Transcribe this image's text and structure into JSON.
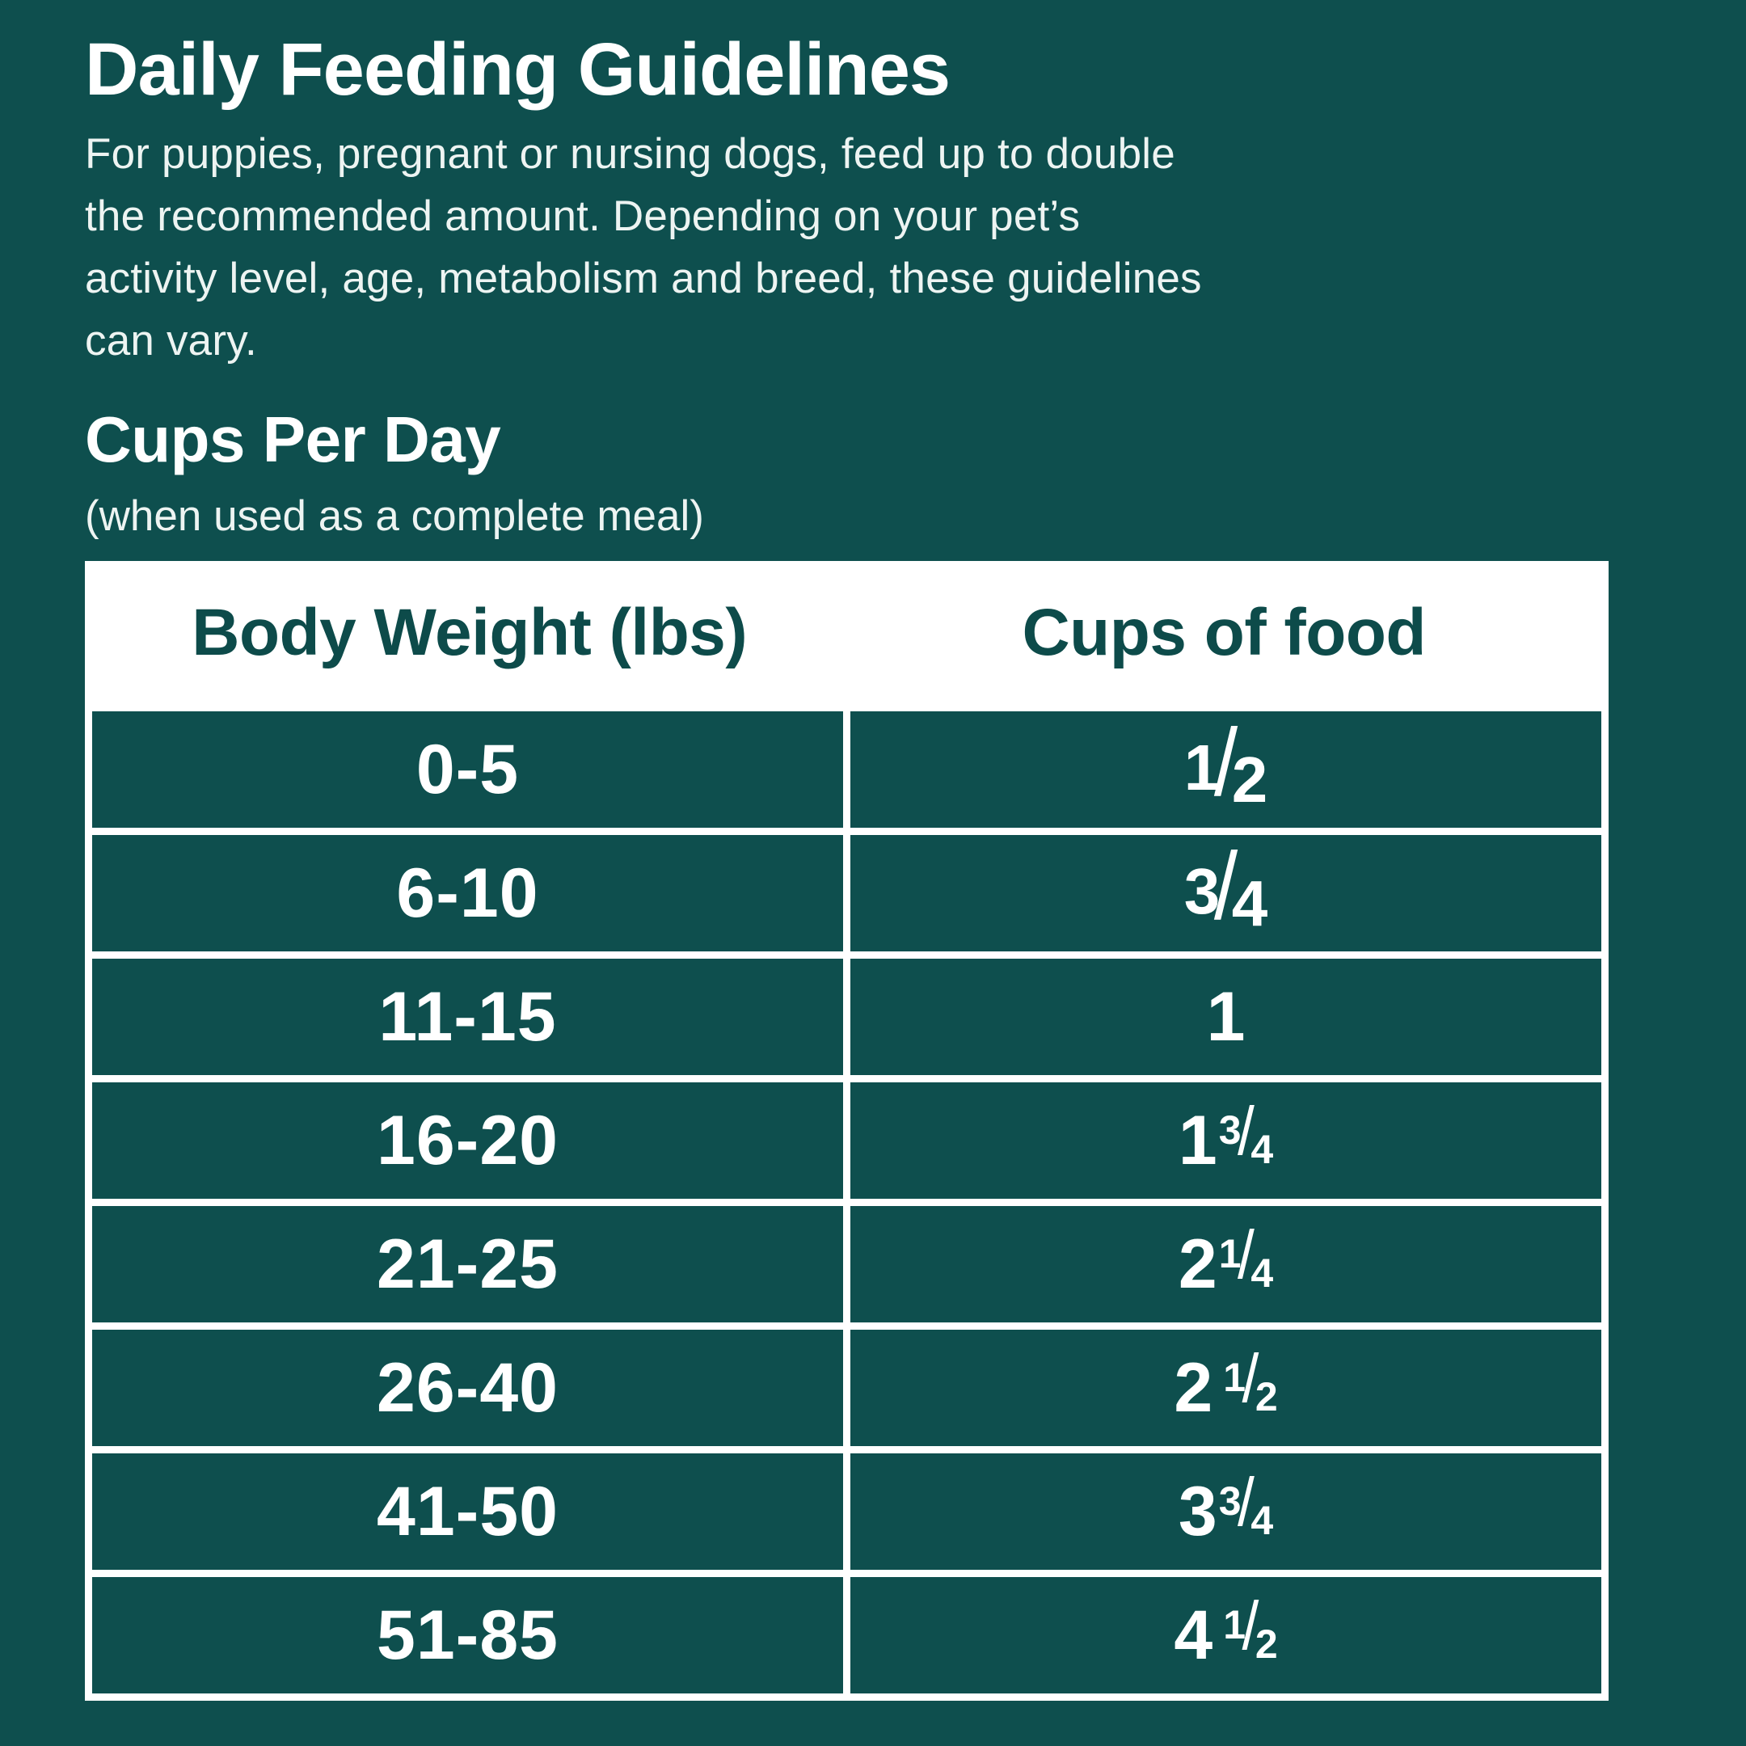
{
  "colors": {
    "background": "#0e4f4e",
    "surface_white": "#ffffff",
    "intro_text": "#edf4f2",
    "table_header_text": "#0d4b4a",
    "cell_text": "#ffffff"
  },
  "header": {
    "title": "Daily Feeding Guidelines",
    "intro_lines": [
      "For puppies, pregnant or nursing dogs, feed up to double",
      "the recommended amount. Depending on your pet’s",
      "activity level, age, metabolism and breed, these guidelines",
      "can vary."
    ]
  },
  "section": {
    "heading": "Cups Per Day",
    "note": "(when used as a complete meal)"
  },
  "table": {
    "columns": [
      "Body Weight (lbs)",
      "Cups of food"
    ],
    "rows": [
      {
        "weight": "0-5",
        "cups_text": "1/2",
        "cups_whole": "",
        "cups_num": "1",
        "cups_den": "2",
        "size": "full",
        "spaced": false
      },
      {
        "weight": "6-10",
        "cups_text": "3/4",
        "cups_whole": "",
        "cups_num": "3",
        "cups_den": "4",
        "size": "full",
        "spaced": false
      },
      {
        "weight": "11-15",
        "cups_text": "1",
        "cups_whole": "1",
        "cups_num": "",
        "cups_den": "",
        "size": "none",
        "spaced": false
      },
      {
        "weight": "16-20",
        "cups_text": "1 3/4",
        "cups_whole": "1",
        "cups_num": "3",
        "cups_den": "4",
        "size": "small",
        "spaced": false
      },
      {
        "weight": "21-25",
        "cups_text": "2 1/4",
        "cups_whole": "2",
        "cups_num": "1",
        "cups_den": "4",
        "size": "small",
        "spaced": false
      },
      {
        "weight": "26-40",
        "cups_text": "2 1/2",
        "cups_whole": "2",
        "cups_num": "1",
        "cups_den": "2",
        "size": "small",
        "spaced": true
      },
      {
        "weight": "41-50",
        "cups_text": "3 3/4",
        "cups_whole": "3",
        "cups_num": "3",
        "cups_den": "4",
        "size": "small",
        "spaced": false
      },
      {
        "weight": "51-85",
        "cups_text": "4 1/2",
        "cups_whole": "4",
        "cups_num": "1",
        "cups_den": "2",
        "size": "small",
        "spaced": true
      }
    ]
  }
}
